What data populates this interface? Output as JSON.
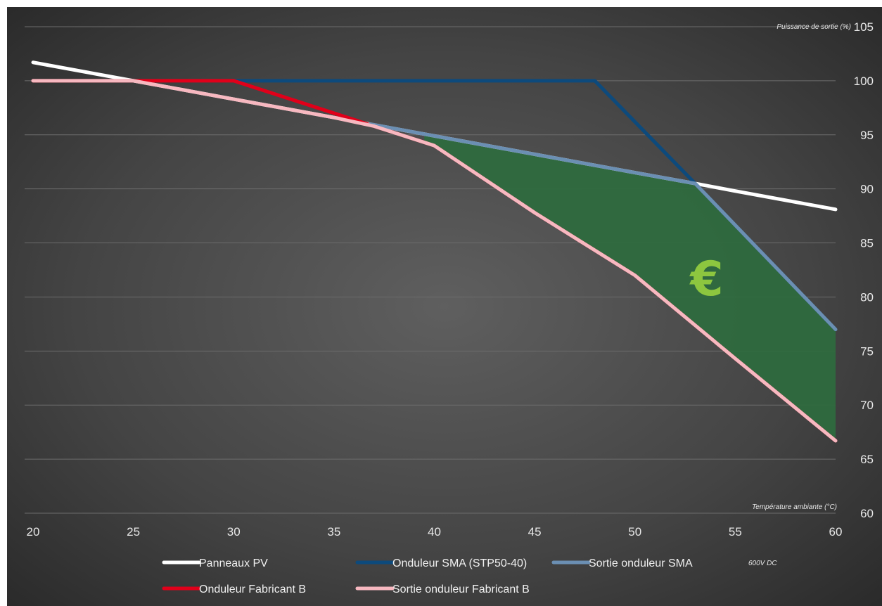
{
  "chart_data": {
    "type": "line",
    "title": "",
    "xlabel": "Température ambiante (°C)",
    "ylabel": "Puissance de sortie (%)",
    "xlim": [
      20,
      60
    ],
    "ylim": [
      60,
      105
    ],
    "x_ticks": [
      20,
      25,
      30,
      35,
      40,
      45,
      50,
      55,
      60
    ],
    "y_ticks": [
      60,
      65,
      70,
      75,
      80,
      85,
      90,
      95,
      100,
      105
    ],
    "grid": "horizontal",
    "legend_position": "bottom",
    "series": [
      {
        "name": "Panneaux PV",
        "color": "#ffffff",
        "points": [
          [
            20,
            101.7
          ],
          [
            25,
            100
          ],
          [
            30,
            98.3
          ],
          [
            35,
            96.6
          ],
          [
            40,
            94.9
          ],
          [
            45,
            93.2
          ],
          [
            50,
            91.5
          ],
          [
            53,
            90.5
          ],
          [
            55,
            89.8
          ],
          [
            60,
            88.1
          ]
        ]
      },
      {
        "name": "Onduleur SMA (STP50-40)",
        "color": "#0d4a7c",
        "points": [
          [
            30,
            100
          ],
          [
            48,
            100
          ],
          [
            53,
            90.5
          ],
          [
            60,
            77
          ]
        ]
      },
      {
        "name": "Sortie onduleur SMA",
        "color": "#6b8fb3",
        "points": [
          [
            36.8,
            96
          ],
          [
            40,
            94.9
          ],
          [
            45,
            93.2
          ],
          [
            50,
            91.5
          ],
          [
            53,
            90.5
          ],
          [
            60,
            77
          ]
        ]
      },
      {
        "name": "Onduleur Fabricant B",
        "color": "#e0001a",
        "points": [
          [
            20,
            100
          ],
          [
            30,
            100
          ],
          [
            37,
            95.8
          ],
          [
            40,
            94
          ],
          [
            45,
            87.8
          ],
          [
            50,
            82
          ],
          [
            55,
            74.3
          ],
          [
            60,
            66.7
          ]
        ]
      },
      {
        "name": "Sortie onduleur Fabricant B",
        "color": "#f7b8c0",
        "points": [
          [
            20,
            100
          ],
          [
            25,
            100
          ],
          [
            30,
            98.3
          ],
          [
            35,
            96.6
          ],
          [
            37,
            95.8
          ],
          [
            40,
            94
          ],
          [
            45,
            87.8
          ],
          [
            50,
            82
          ],
          [
            55,
            74.3
          ],
          [
            60,
            66.7
          ]
        ]
      }
    ],
    "shaded_region": {
      "label": "€",
      "color": "#2e6b3e",
      "upper_series": "Sortie onduleur SMA",
      "lower_series": "Sortie onduleur Fabricant B",
      "x_range": [
        39.5,
        60
      ]
    },
    "note": "600V DC"
  }
}
